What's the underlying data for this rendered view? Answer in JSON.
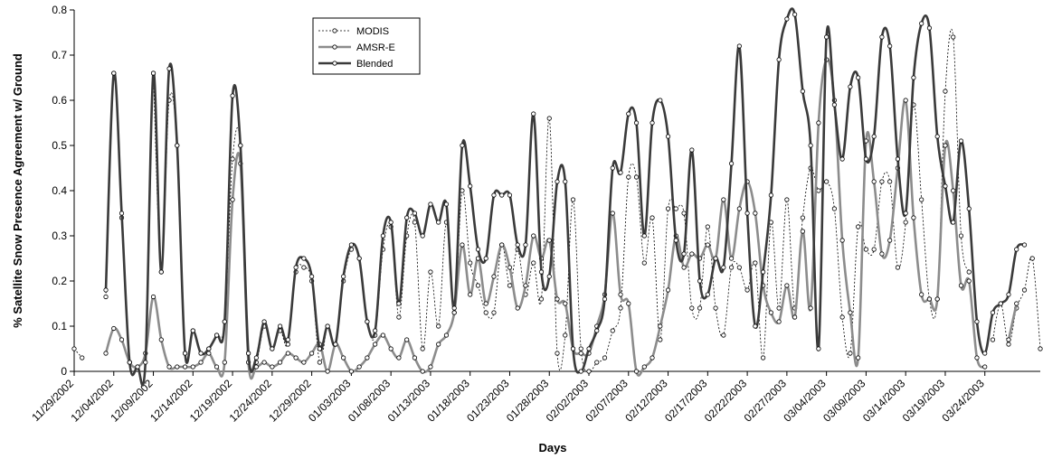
{
  "chart_data": {
    "type": "line",
    "xlabel": "Days",
    "ylabel": "% Satellite Snow Presence Agreement w/ Ground",
    "ylim": [
      0,
      0.8
    ],
    "yticks": [
      "0",
      "0.1",
      "0.2",
      "0.3",
      "0.4",
      "0.5",
      "0.6",
      "0.7",
      "0.8"
    ],
    "x_tick_labels": [
      "11/29/2002",
      "12/04/2002",
      "12/09/2002",
      "12/14/2002",
      "12/19/2002",
      "12/24/2002",
      "12/29/2002",
      "01/03/2003",
      "01/08/2003",
      "01/13/2003",
      "01/18/2003",
      "01/23/2003",
      "01/28/2003",
      "02/02/2003",
      "02/07/2003",
      "02/12/2003",
      "02/17/2003",
      "02/22/2003",
      "02/27/2003",
      "03/04/2003",
      "03/09/2003",
      "03/14/2003",
      "03/19/2003",
      "03/24/2003"
    ],
    "x_start": "11/29/2002",
    "x_end": "03/24/2003",
    "grid": false,
    "legend_position": "top-center",
    "series": [
      {
        "name": "MODIS",
        "style": "dotted",
        "color": "#000000",
        "values": [
          0.05,
          0.03,
          null,
          null,
          0.165,
          0.66,
          0.34,
          0.02,
          0.01,
          null,
          0.66,
          0.22,
          0.6,
          0.5,
          0.04,
          0.09,
          0.04,
          0.05,
          0.08,
          0.11,
          0.47,
          0.5,
          0.04,
          0.02,
          0.1,
          0.05,
          0.09,
          0.06,
          0.22,
          0.23,
          0.2,
          0.02,
          0.1,
          0.06,
          0.2,
          0.27,
          0.25,
          0.11,
          0.08,
          0.27,
          0.32,
          0.12,
          0.3,
          0.33,
          0.05,
          0.22,
          0.1,
          0.33,
          0.13,
          0.4,
          0.24,
          0.19,
          0.13,
          0.13,
          0.28,
          0.19,
          0.27,
          0.17,
          0.24,
          0.16,
          0.56,
          0.04,
          0.08,
          0.38,
          0.05,
          0.0,
          0.02,
          0.03,
          0.09,
          0.14,
          0.43,
          0.43,
          0.24,
          0.34,
          0.07,
          0.36,
          0.36,
          0.35,
          0.14,
          0.14,
          0.32,
          0.14,
          0.08,
          0.23,
          0.23,
          0.18,
          0.24,
          0.03,
          0.33,
          0.14,
          0.38,
          0.14,
          0.34,
          0.45,
          0.4,
          0.42,
          0.36,
          0.12,
          0.04,
          0.32,
          0.27,
          0.27,
          0.42,
          0.42,
          0.23,
          0.33,
          0.59,
          0.38,
          0.16,
          0.16,
          0.62,
          0.74,
          0.3,
          0.22,
          null,
          null,
          0.07,
          0.15,
          0.06,
          0.14,
          0.18,
          0.25,
          0.05
        ]
      },
      {
        "name": "AMSR-E",
        "style": "solid",
        "color": "#8c8c8c",
        "values": [
          null,
          null,
          null,
          null,
          0.04,
          0.095,
          0.07,
          0.02,
          0.01,
          0.04,
          0.165,
          0.07,
          0.01,
          0.01,
          0.01,
          0.01,
          0.02,
          0.04,
          0.01,
          0.02,
          0.38,
          0.46,
          0.02,
          0.01,
          0.02,
          0.01,
          0.02,
          0.04,
          0.03,
          0.02,
          0.04,
          0.06,
          0.0,
          0.06,
          0.03,
          0.0,
          0.01,
          0.03,
          0.06,
          0.08,
          0.05,
          0.03,
          0.07,
          0.03,
          0.0,
          0.01,
          0.06,
          0.08,
          0.13,
          0.28,
          0.17,
          0.25,
          0.15,
          0.21,
          0.28,
          0.23,
          0.14,
          0.19,
          0.3,
          0.25,
          0.29,
          0.16,
          0.15,
          0.05,
          0.04,
          0.04,
          0.1,
          0.17,
          0.35,
          0.17,
          0.15,
          0.0,
          0.01,
          0.03,
          0.1,
          0.18,
          0.3,
          0.23,
          0.26,
          0.25,
          0.28,
          0.25,
          0.38,
          0.25,
          0.36,
          0.42,
          0.35,
          0.19,
          0.13,
          0.11,
          0.19,
          0.12,
          0.31,
          0.14,
          0.55,
          0.69,
          0.6,
          0.29,
          0.13,
          0.03,
          0.51,
          0.42,
          0.26,
          0.29,
          0.45,
          0.6,
          0.34,
          0.17,
          0.16,
          0.16,
          0.5,
          0.4,
          0.19,
          0.2,
          0.03,
          0.01,
          null,
          null,
          0.07,
          0.15
        ]
      },
      {
        "name": "Blended",
        "style": "solid",
        "color": "#3a3a3a",
        "values": [
          null,
          null,
          null,
          null,
          0.18,
          0.66,
          0.35,
          0.02,
          0.01,
          0.02,
          0.66,
          0.22,
          0.67,
          0.5,
          0.04,
          0.09,
          0.04,
          0.05,
          0.08,
          0.11,
          0.61,
          0.5,
          0.04,
          0.03,
          0.11,
          0.05,
          0.1,
          0.07,
          0.23,
          0.25,
          0.21,
          0.05,
          0.1,
          0.06,
          0.21,
          0.28,
          0.25,
          0.11,
          0.09,
          0.3,
          0.33,
          0.15,
          0.34,
          0.35,
          0.3,
          0.37,
          0.33,
          0.37,
          0.14,
          0.5,
          0.41,
          0.27,
          0.25,
          0.39,
          0.39,
          0.39,
          0.28,
          0.28,
          0.57,
          0.22,
          0.21,
          0.42,
          0.42,
          0.05,
          0.0,
          0.05,
          0.09,
          0.16,
          0.45,
          0.44,
          0.57,
          0.55,
          0.3,
          0.55,
          0.6,
          0.52,
          0.29,
          0.26,
          0.49,
          0.2,
          0.17,
          0.25,
          0.23,
          0.46,
          0.72,
          0.35,
          0.1,
          0.22,
          0.39,
          0.69,
          0.78,
          0.79,
          0.62,
          0.5,
          0.05,
          0.74,
          0.59,
          0.47,
          0.63,
          0.65,
          0.47,
          0.52,
          0.74,
          0.72,
          0.47,
          0.35,
          0.65,
          0.77,
          0.76,
          0.52,
          0.41,
          0.33,
          0.51,
          0.36,
          0.11,
          0.04,
          0.13,
          0.15,
          0.17,
          0.27,
          0.28
        ]
      }
    ]
  }
}
